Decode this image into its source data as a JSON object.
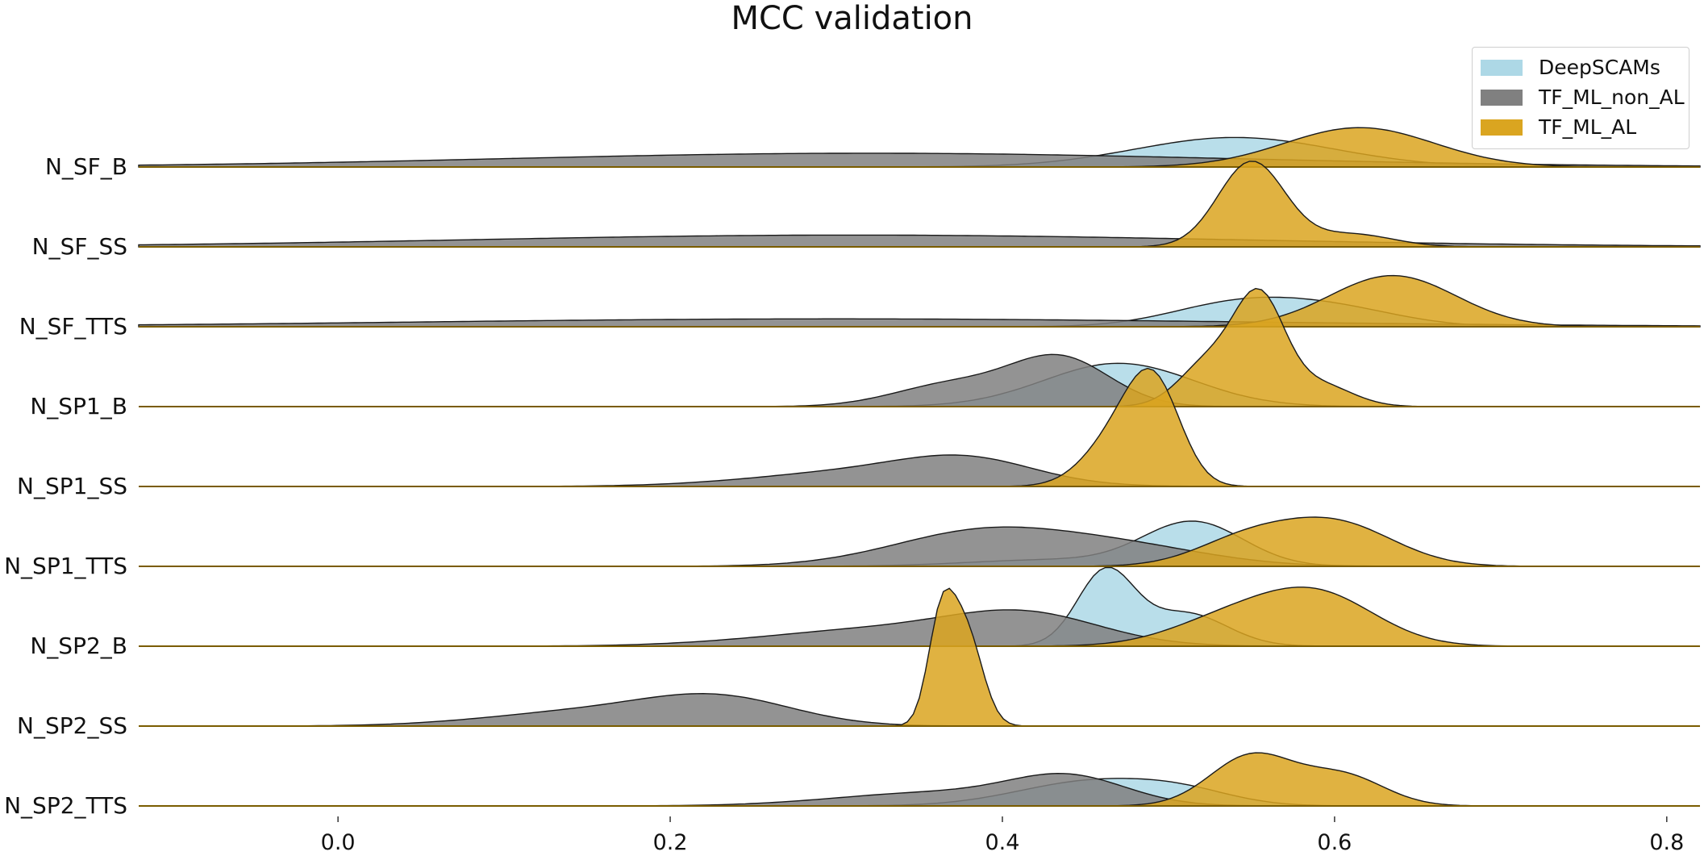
{
  "chart_data": {
    "type": "area",
    "title": "MCC validation",
    "xlabel": "",
    "ylabel": "",
    "xlim": [
      -0.12,
      0.82
    ],
    "x_ticks": [
      "0.0",
      "0.2",
      "0.4",
      "0.6",
      "0.8"
    ],
    "legend_position": "top-right",
    "grid": false,
    "series": [
      {
        "name": "DeepSCAMs",
        "color": "#ADD8E6"
      },
      {
        "name": "TF_ML_non_AL",
        "color": "#808080"
      },
      {
        "name": "TF_ML_AL",
        "color": "#DAA520"
      }
    ],
    "rows": [
      {
        "label": "N_SF_B",
        "densities": {
          "DeepSCAMs": {
            "components": [
              [
                0.54,
                0.06,
                0.3
              ]
            ],
            "peak": 0.3
          },
          "TF_ML_non_AL": {
            "components": [
              [
                0.32,
                0.22,
                1.0
              ]
            ],
            "peak": 0.14
          },
          "TF_ML_AL": {
            "components": [
              [
                0.615,
                0.045,
                1.0
              ]
            ],
            "peak": 0.4
          }
        }
      },
      {
        "label": "N_SF_SS",
        "densities": {
          "DeepSCAMs": {
            "components": [],
            "peak": 0
          },
          "TF_ML_non_AL": {
            "components": [
              [
                0.31,
                0.23,
                1.0
              ]
            ],
            "peak": 0.12
          },
          "TF_ML_AL": {
            "components": [
              [
                0.55,
                0.02,
                1.0
              ],
              [
                0.61,
                0.025,
                0.15
              ]
            ],
            "peak": 0.87
          }
        }
      },
      {
        "label": "N_SF_TTS",
        "densities": {
          "DeepSCAMs": {
            "components": [
              [
                0.54,
                0.04,
                0.7
              ],
              [
                0.6,
                0.04,
                0.55
              ]
            ],
            "peak": 0.3
          },
          "TF_ML_non_AL": {
            "components": [
              [
                0.3,
                0.25,
                1.0
              ]
            ],
            "peak": 0.08
          },
          "TF_ML_AL": {
            "components": [
              [
                0.635,
                0.038,
                1.0
              ]
            ],
            "peak": 0.52
          }
        }
      },
      {
        "label": "N_SP1_B",
        "densities": {
          "DeepSCAMs": {
            "components": [
              [
                0.47,
                0.045,
                1.0
              ]
            ],
            "peak": 0.44
          },
          "TF_ML_non_AL": {
            "components": [
              [
                0.37,
                0.035,
                0.35
              ],
              [
                0.435,
                0.03,
                0.75
              ]
            ],
            "peak": 0.53
          },
          "TF_ML_AL": {
            "components": [
              [
                0.525,
                0.018,
                0.4
              ],
              [
                0.555,
                0.015,
                0.9
              ],
              [
                0.59,
                0.02,
                0.2
              ]
            ],
            "peak": 1.2
          }
        }
      },
      {
        "label": "N_SP1_SS",
        "densities": {
          "DeepSCAMs": {
            "components": [],
            "peak": 0
          },
          "TF_ML_non_AL": {
            "components": [
              [
                0.32,
                0.065,
                0.45
              ],
              [
                0.38,
                0.04,
                0.6
              ]
            ],
            "peak": 0.32
          },
          "TF_ML_AL": {
            "components": [
              [
                0.47,
                0.02,
                0.5
              ],
              [
                0.492,
                0.016,
                0.9
              ]
            ],
            "peak": 1.2
          }
        }
      },
      {
        "label": "N_SP1_TTS",
        "densities": {
          "DeepSCAMs": {
            "components": [
              [
                0.515,
                0.03,
                1.0
              ],
              [
                0.43,
                0.05,
                0.15
              ]
            ],
            "peak": 0.46
          },
          "TF_ML_non_AL": {
            "components": [
              [
                0.39,
                0.055,
                1.0
              ],
              [
                0.48,
                0.05,
                0.45
              ]
            ],
            "peak": 0.4
          },
          "TF_ML_AL": {
            "components": [
              [
                0.545,
                0.03,
                0.55
              ],
              [
                0.6,
                0.035,
                1.0
              ]
            ],
            "peak": 0.5
          }
        }
      },
      {
        "label": "N_SP2_B",
        "densities": {
          "DeepSCAMs": {
            "components": [
              [
                0.462,
                0.017,
                1.0
              ],
              [
                0.51,
                0.025,
                0.45
              ]
            ],
            "peak": 0.8
          },
          "TF_ML_non_AL": {
            "components": [
              [
                0.33,
                0.07,
                0.5
              ],
              [
                0.415,
                0.045,
                0.8
              ]
            ],
            "peak": 0.37
          },
          "TF_ML_AL": {
            "components": [
              [
                0.535,
                0.035,
                0.5
              ],
              [
                0.59,
                0.035,
                1.0
              ]
            ],
            "peak": 0.6
          }
        }
      },
      {
        "label": "N_SP2_SS",
        "densities": {
          "DeepSCAMs": {
            "components": [],
            "peak": 0
          },
          "TF_ML_non_AL": {
            "components": [
              [
                0.15,
                0.06,
                0.55
              ],
              [
                0.23,
                0.045,
                1.0
              ]
            ],
            "peak": 0.33
          },
          "TF_ML_AL": {
            "components": [
              [
                0.363,
                0.008,
                0.85
              ],
              [
                0.378,
                0.01,
                0.8
              ]
            ],
            "peak": 1.4
          }
        }
      },
      {
        "label": "N_SP2_TTS",
        "densities": {
          "DeepSCAMs": {
            "components": [
              [
                0.455,
                0.045,
                1.0
              ],
              [
                0.51,
                0.03,
                0.4
              ]
            ],
            "peak": 0.28
          },
          "TF_ML_non_AL": {
            "components": [
              [
                0.36,
                0.06,
                0.4
              ],
              [
                0.44,
                0.035,
                0.8
              ]
            ],
            "peak": 0.33
          },
          "TF_ML_AL": {
            "components": [
              [
                0.55,
                0.025,
                1.0
              ],
              [
                0.605,
                0.025,
                0.6
              ]
            ],
            "peak": 0.54
          }
        }
      }
    ]
  }
}
